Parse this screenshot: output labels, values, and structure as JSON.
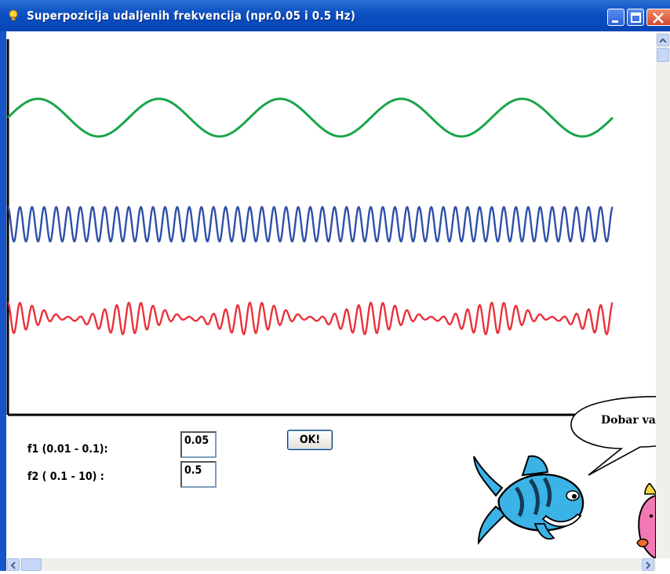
{
  "window": {
    "title": "Superpozicija udaljenih frekvencija (npr.0.05 i 0.5 Hz)"
  },
  "form": {
    "f1_label": "f1 (0.01 - 0.1):",
    "f2_label": "f2 ( 0.1 - 10) :",
    "f1_value": "0.05",
    "f2_value": "0.5",
    "ok_label": "OK!"
  },
  "mascot": {
    "speech": "Dobar val"
  },
  "icons": {
    "title": "light-bulb-icon",
    "minimize": "minimize-icon",
    "maximize": "maximize-icon",
    "close": "close-icon",
    "heart": "heart-icon"
  },
  "chart_data": {
    "type": "line",
    "grid": false,
    "series": [
      {
        "color": "#1aa54a",
        "frequency": 0.05,
        "amplitude": 1,
        "description_key": "f1"
      },
      {
        "color": "#2f4faa",
        "frequency": 0.5,
        "amplitude": 1,
        "description_key": "f2"
      },
      {
        "color": "#e8333c",
        "frequency": "f1+f2",
        "amplitude": 1,
        "description_key": "sum"
      }
    ],
    "duration_s": 100
  },
  "colors": {
    "titlebar": "#0b4fc1",
    "green": "#1aa54a",
    "blue": "#2f4faa",
    "red": "#e8333c",
    "fish_blue": "#3bb3e6",
    "fish_pink": "#f279b3"
  }
}
